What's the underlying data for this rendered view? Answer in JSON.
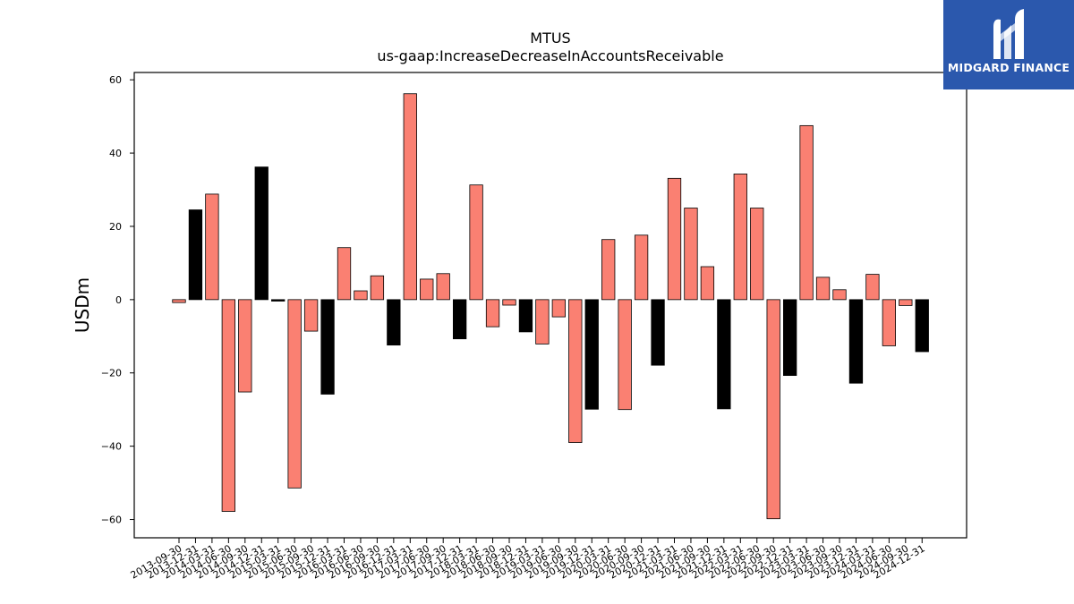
{
  "brand": {
    "logo_text": "MIDGARD FINANCE",
    "logo_color": "#2b58ad"
  },
  "chart_data": {
    "type": "bar",
    "title": "MTUS",
    "subtitle": "us-gaap:IncreaseDecreaseInAccountsReceivable",
    "xlabel": "",
    "ylabel": "USDm",
    "ylim": [
      -65,
      62
    ],
    "yticks": [
      60,
      40,
      20,
      0,
      -20,
      -40,
      -60
    ],
    "grid": false,
    "colors": {
      "default": "#fa8072",
      "highlight": "#000000",
      "edge": "#000000"
    },
    "categories": [
      "2013-09-30",
      "2013-12-31",
      "2014-03-31",
      "2014-06-30",
      "2014-09-30",
      "2014-12-31",
      "2015-03-31",
      "2015-06-30",
      "2015-09-30",
      "2015-12-31",
      "2016-03-31",
      "2016-06-30",
      "2016-09-30",
      "2016-12-31",
      "2017-03-31",
      "2017-06-30",
      "2017-09-30",
      "2017-12-31",
      "2018-03-31",
      "2018-06-30",
      "2018-09-30",
      "2018-12-31",
      "2019-03-31",
      "2019-06-30",
      "2019-09-30",
      "2019-12-31",
      "2020-03-31",
      "2020-06-30",
      "2020-09-30",
      "2020-12-31",
      "2021-03-31",
      "2021-06-30",
      "2021-09-30",
      "2021-12-31",
      "2022-03-31",
      "2022-06-30",
      "2022-09-30",
      "2022-12-31",
      "2023-03-31",
      "2023-06-30",
      "2023-09-30",
      "2023-12-31",
      "2024-03-31",
      "2024-06-30",
      "2024-09-30",
      "2024-12-31"
    ],
    "values": [
      -0.8,
      24.5,
      28.8,
      -57.8,
      -25.2,
      36.2,
      -0.4,
      -51.4,
      -8.6,
      -25.8,
      14.2,
      2.4,
      6.5,
      -12.4,
      56.2,
      5.6,
      7.1,
      -10.7,
      31.3,
      -7.4,
      -1.5,
      -8.8,
      -12.1,
      -4.7,
      -39.0,
      -29.9,
      16.4,
      -30.0,
      17.6,
      -17.9,
      33.1,
      25.0,
      9.0,
      -29.8,
      34.3,
      25.0,
      -59.8,
      -20.7,
      47.5,
      6.1,
      2.7,
      -22.8,
      6.9,
      -12.6,
      -1.6,
      -14.2
    ],
    "highlight": [
      false,
      true,
      false,
      false,
      false,
      true,
      true,
      false,
      false,
      true,
      false,
      false,
      false,
      true,
      false,
      false,
      false,
      true,
      false,
      false,
      false,
      true,
      false,
      false,
      false,
      true,
      false,
      false,
      false,
      true,
      false,
      false,
      false,
      true,
      false,
      false,
      false,
      true,
      false,
      false,
      false,
      true,
      false,
      false,
      false,
      true
    ]
  }
}
